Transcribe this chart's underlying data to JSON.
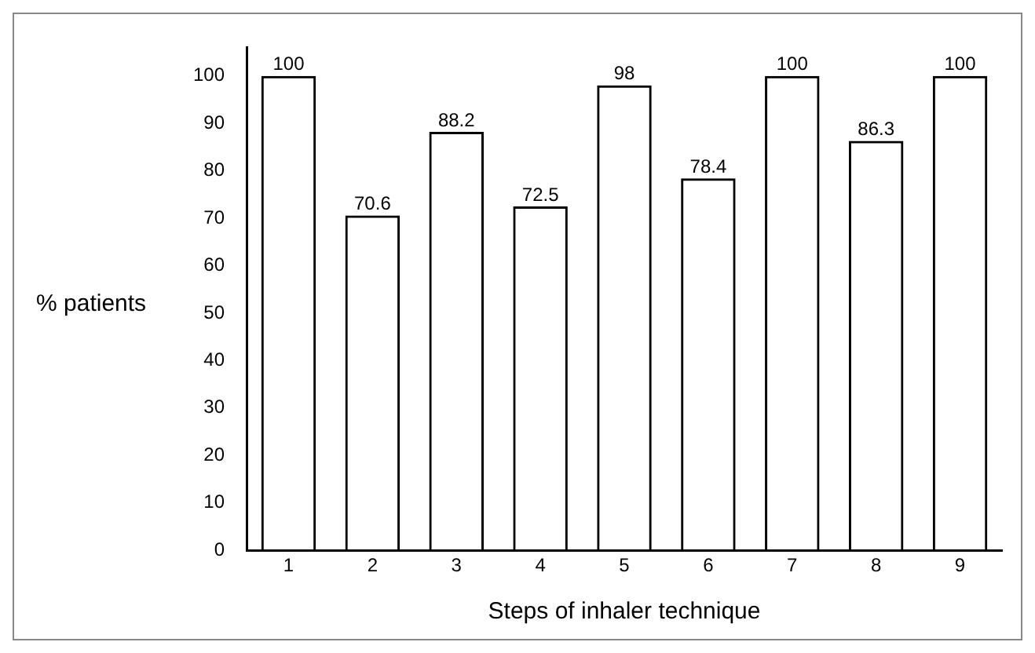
{
  "chart_data": {
    "type": "bar",
    "xlabel": "Steps of inhaler technique",
    "ylabel": "% patients",
    "categories": [
      "1",
      "2",
      "3",
      "4",
      "5",
      "6",
      "7",
      "8",
      "9"
    ],
    "values": [
      100,
      70.6,
      88.2,
      72.5,
      98,
      78.4,
      100,
      86.3,
      100
    ],
    "color": "#000000",
    "data_labels": true,
    "grid": false,
    "legend": false,
    "ylim": [
      0,
      106
    ],
    "yticks": [
      0,
      10,
      20,
      30,
      40,
      50,
      60,
      70,
      80,
      90,
      100
    ]
  }
}
